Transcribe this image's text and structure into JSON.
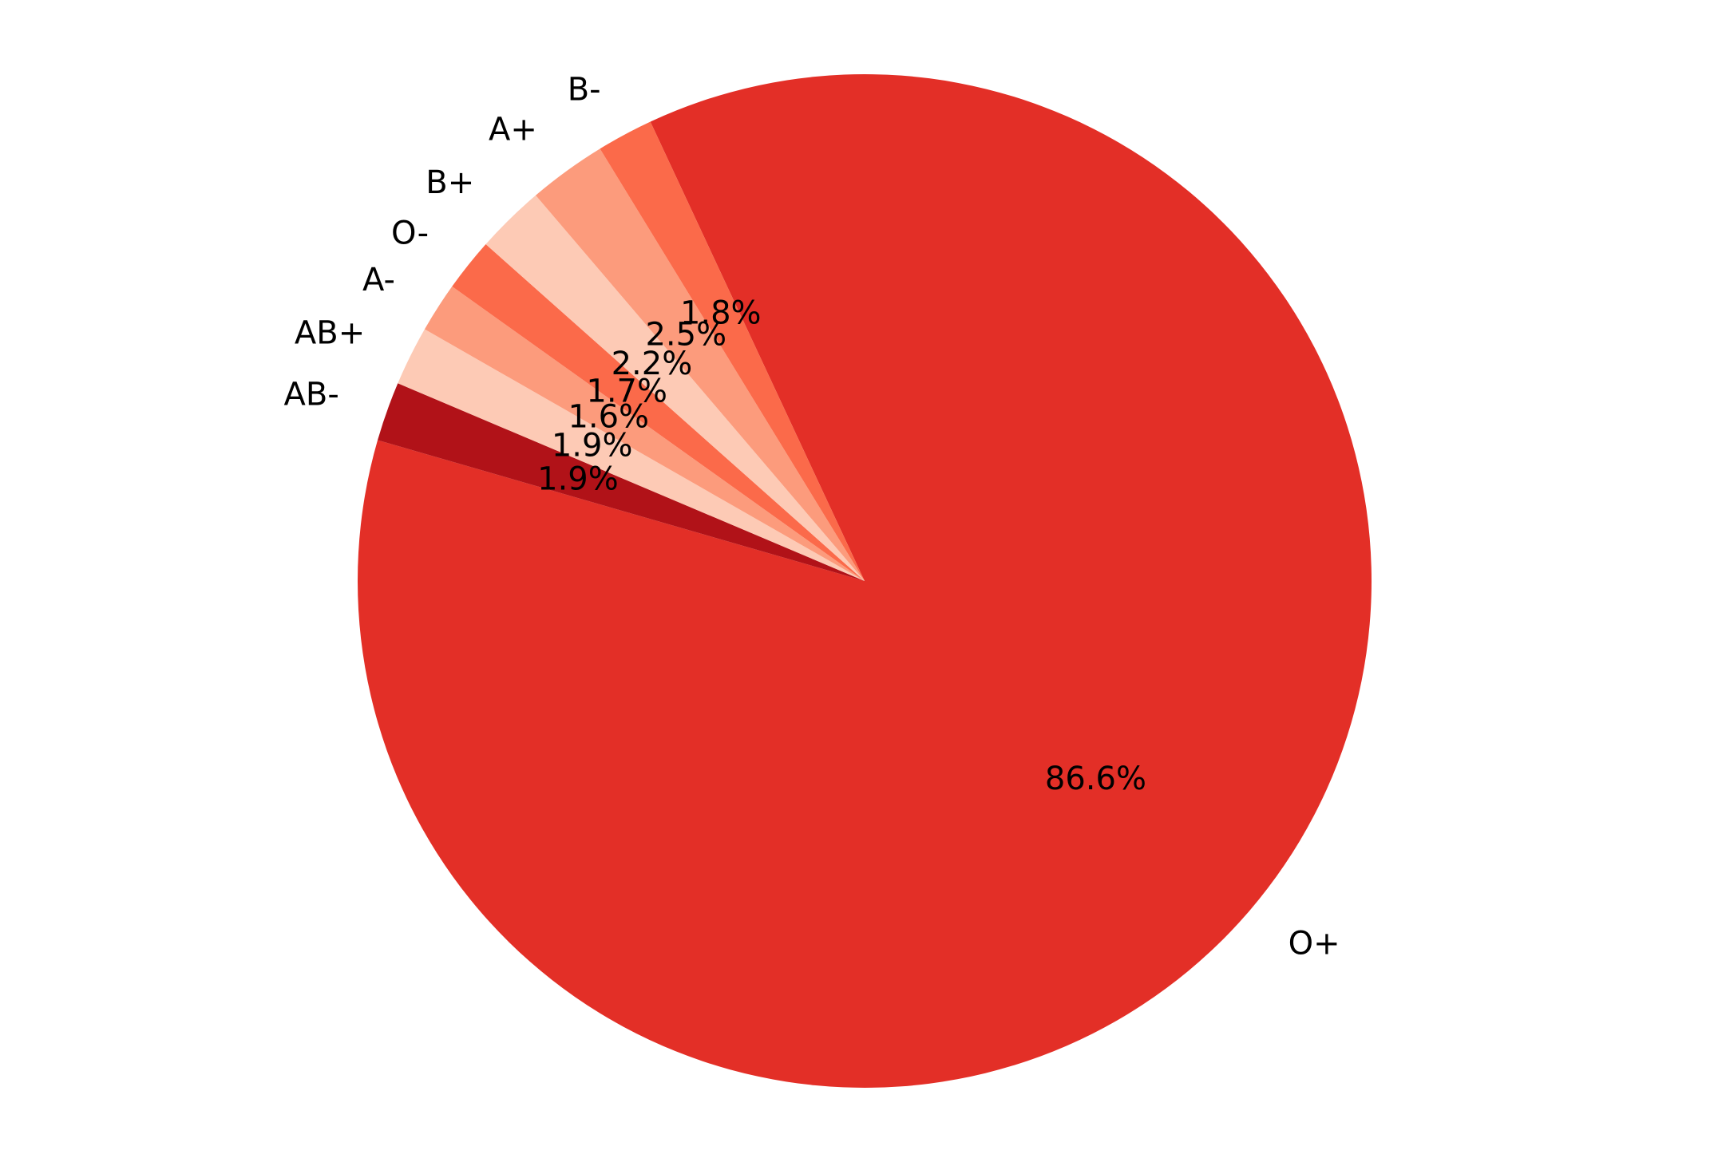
{
  "chart_data": {
    "type": "pie",
    "title": "",
    "legend": "none",
    "slices": [
      {
        "label": "O+",
        "pct_label": "86.6%",
        "value": 86.6,
        "color": "#e32f27"
      },
      {
        "label": "AB-",
        "pct_label": "1.9%",
        "value": 1.9,
        "color": "#b11218"
      },
      {
        "label": "AB+",
        "pct_label": "1.9%",
        "value": 1.9,
        "color": "#fdcab5"
      },
      {
        "label": "A-",
        "pct_label": "1.6%",
        "value": 1.6,
        "color": "#fc9b7c"
      },
      {
        "label": "O-",
        "pct_label": "1.7%",
        "value": 1.7,
        "color": "#fb6a4a"
      },
      {
        "label": "B+",
        "pct_label": "2.2%",
        "value": 2.2,
        "color": "#fdcab5"
      },
      {
        "label": "A+",
        "pct_label": "2.5%",
        "value": 2.5,
        "color": "#fc9b7c"
      },
      {
        "label": "B-",
        "pct_label": "1.8%",
        "value": 1.8,
        "color": "#fb6a4a"
      }
    ]
  }
}
